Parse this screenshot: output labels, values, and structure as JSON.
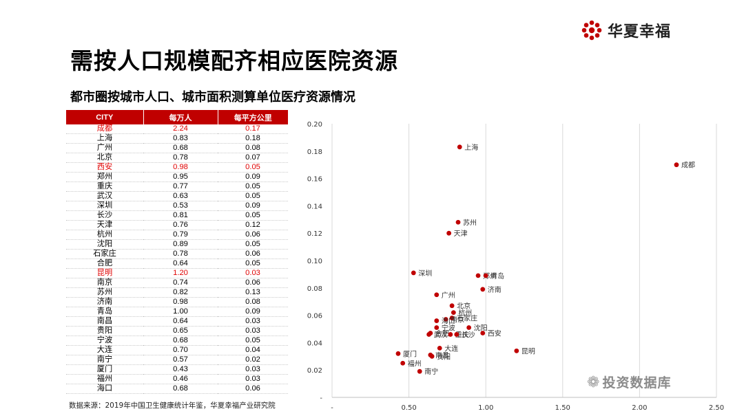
{
  "brand": {
    "name": "华夏幸福",
    "accent": "#c00000"
  },
  "title": "需按人口规模配齐相应医院资源",
  "subtitle": "都市圈按城市人口、城市面积测算单位医疗资源情况",
  "table": {
    "headers": [
      "CITY",
      "每万人",
      "每平方公里"
    ],
    "rows": [
      {
        "city": "成都",
        "per10k": "2.24",
        "perkm2": "0.17",
        "highlight": true
      },
      {
        "city": "上海",
        "per10k": "0.83",
        "perkm2": "0.18",
        "highlight": false
      },
      {
        "city": "广州",
        "per10k": "0.68",
        "perkm2": "0.08",
        "highlight": false
      },
      {
        "city": "北京",
        "per10k": "0.78",
        "perkm2": "0.07",
        "highlight": false
      },
      {
        "city": "西安",
        "per10k": "0.98",
        "perkm2": "0.05",
        "highlight": true
      },
      {
        "city": "郑州",
        "per10k": "0.95",
        "perkm2": "0.09",
        "highlight": false
      },
      {
        "city": "重庆",
        "per10k": "0.77",
        "perkm2": "0.05",
        "highlight": false
      },
      {
        "city": "武汉",
        "per10k": "0.63",
        "perkm2": "0.05",
        "highlight": false
      },
      {
        "city": "深圳",
        "per10k": "0.53",
        "perkm2": "0.09",
        "highlight": false
      },
      {
        "city": "长沙",
        "per10k": "0.81",
        "perkm2": "0.05",
        "highlight": false
      },
      {
        "city": "天津",
        "per10k": "0.76",
        "perkm2": "0.12",
        "highlight": false
      },
      {
        "city": "杭州",
        "per10k": "0.79",
        "perkm2": "0.06",
        "highlight": false
      },
      {
        "city": "沈阳",
        "per10k": "0.89",
        "perkm2": "0.05",
        "highlight": false
      },
      {
        "city": "石家庄",
        "per10k": "0.78",
        "perkm2": "0.06",
        "highlight": false
      },
      {
        "city": "合肥",
        "per10k": "0.64",
        "perkm2": "0.05",
        "highlight": false
      },
      {
        "city": "昆明",
        "per10k": "1.20",
        "perkm2": "0.03",
        "highlight": true
      },
      {
        "city": "南京",
        "per10k": "0.74",
        "perkm2": "0.06",
        "highlight": false
      },
      {
        "city": "苏州",
        "per10k": "0.82",
        "perkm2": "0.13",
        "highlight": false
      },
      {
        "city": "济南",
        "per10k": "0.98",
        "perkm2": "0.08",
        "highlight": false
      },
      {
        "city": "青岛",
        "per10k": "1.00",
        "perkm2": "0.09",
        "highlight": false
      },
      {
        "city": "南昌",
        "per10k": "0.64",
        "perkm2": "0.03",
        "highlight": false
      },
      {
        "city": "贵阳",
        "per10k": "0.65",
        "perkm2": "0.03",
        "highlight": false
      },
      {
        "city": "宁波",
        "per10k": "0.68",
        "perkm2": "0.05",
        "highlight": false
      },
      {
        "city": "大连",
        "per10k": "0.70",
        "perkm2": "0.04",
        "highlight": false
      },
      {
        "city": "南宁",
        "per10k": "0.57",
        "perkm2": "0.02",
        "highlight": false
      },
      {
        "city": "厦门",
        "per10k": "0.43",
        "perkm2": "0.03",
        "highlight": false
      },
      {
        "city": "福州",
        "per10k": "0.46",
        "perkm2": "0.03",
        "highlight": false
      },
      {
        "city": "海口",
        "per10k": "0.68",
        "perkm2": "0.06",
        "highlight": false
      }
    ]
  },
  "source": "数据来源：2019年中国卫生健康统计年鉴，华夏幸福产业研究院",
  "watermark": "投资数据库",
  "chart_data": {
    "type": "scatter",
    "title": "",
    "xlabel": "",
    "ylabel": "",
    "xlim": [
      0,
      2.5
    ],
    "ylim": [
      0,
      0.2
    ],
    "x_ticks": [
      "-",
      "0.50",
      "1.00",
      "1.50",
      "2.00",
      "2.50"
    ],
    "y_ticks": [
      "-",
      "0.02",
      "0.04",
      "0.06",
      "0.08",
      "0.10",
      "0.12",
      "0.14",
      "0.16",
      "0.18",
      "0.20"
    ],
    "grid": "vertical",
    "marker_color": "#c00000",
    "points": [
      {
        "label": "上海",
        "x": 0.83,
        "y": 0.183
      },
      {
        "label": "成都",
        "x": 2.24,
        "y": 0.17
      },
      {
        "label": "苏州",
        "x": 0.82,
        "y": 0.128
      },
      {
        "label": "天津",
        "x": 0.76,
        "y": 0.12
      },
      {
        "label": "深圳",
        "x": 0.53,
        "y": 0.091
      },
      {
        "label": "郑州",
        "x": 0.95,
        "y": 0.089
      },
      {
        "label": "青岛",
        "x": 1.0,
        "y": 0.089
      },
      {
        "label": "济南",
        "x": 0.98,
        "y": 0.079
      },
      {
        "label": "广州",
        "x": 0.68,
        "y": 0.075
      },
      {
        "label": "北京",
        "x": 0.78,
        "y": 0.067
      },
      {
        "label": "杭州",
        "x": 0.79,
        "y": 0.062
      },
      {
        "label": "石家庄",
        "x": 0.78,
        "y": 0.058
      },
      {
        "label": "南京",
        "x": 0.74,
        "y": 0.057
      },
      {
        "label": "海口",
        "x": 0.68,
        "y": 0.056
      },
      {
        "label": "宁波",
        "x": 0.68,
        "y": 0.051
      },
      {
        "label": "沈阳",
        "x": 0.89,
        "y": 0.051
      },
      {
        "label": "合肥",
        "x": 0.64,
        "y": 0.047
      },
      {
        "label": "武汉",
        "x": 0.63,
        "y": 0.046
      },
      {
        "label": "重庆",
        "x": 0.77,
        "y": 0.046
      },
      {
        "label": "长沙",
        "x": 0.81,
        "y": 0.046
      },
      {
        "label": "西安",
        "x": 0.98,
        "y": 0.047
      },
      {
        "label": "大连",
        "x": 0.7,
        "y": 0.036
      },
      {
        "label": "昆明",
        "x": 1.2,
        "y": 0.034
      },
      {
        "label": "厦门",
        "x": 0.43,
        "y": 0.032
      },
      {
        "label": "南昌",
        "x": 0.64,
        "y": 0.031
      },
      {
        "label": "贵阳",
        "x": 0.65,
        "y": 0.03
      },
      {
        "label": "福州",
        "x": 0.46,
        "y": 0.025
      },
      {
        "label": "南宁",
        "x": 0.57,
        "y": 0.019
      }
    ]
  }
}
